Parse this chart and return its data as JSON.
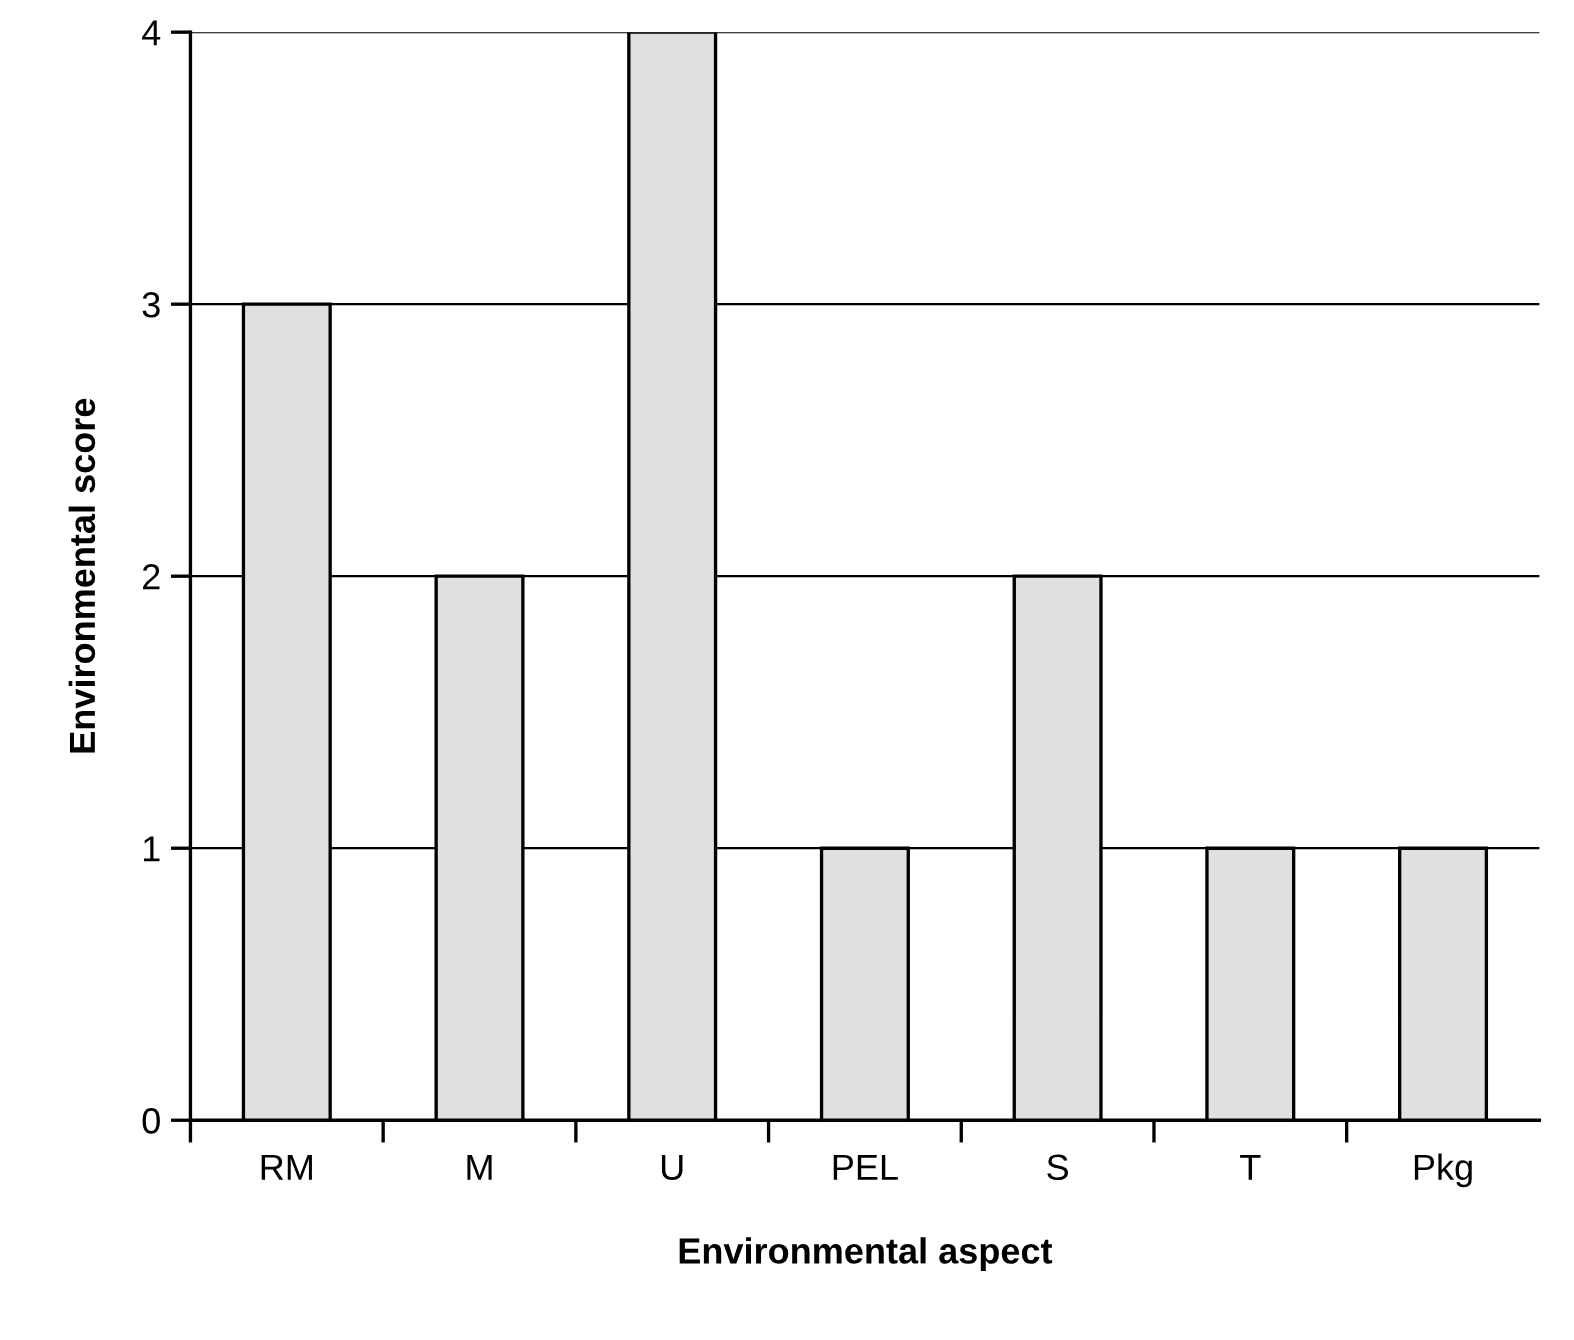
{
  "chart_data": {
    "type": "bar",
    "xlabel": "Environmental aspect",
    "ylabel": "Environmental score",
    "categories": [
      "RM",
      "M",
      "U",
      "PEL",
      "S",
      "T",
      "Pkg"
    ],
    "values": [
      3,
      2,
      4,
      1,
      2,
      1,
      1
    ],
    "color": "#e0e0e0",
    "ylim": [
      0,
      4
    ],
    "yticks": [
      0,
      1,
      2,
      3,
      4
    ],
    "grid": "y"
  }
}
